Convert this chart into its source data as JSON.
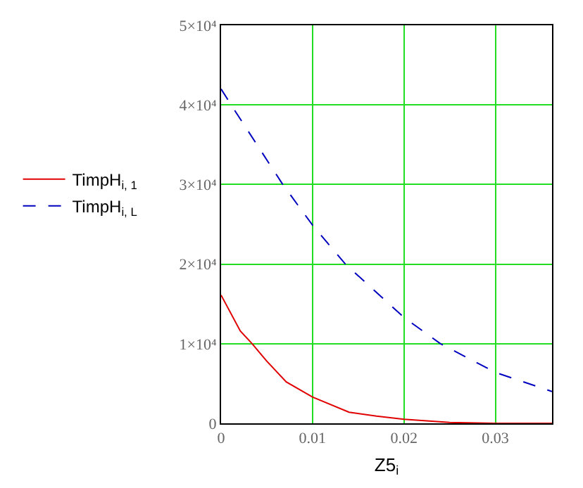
{
  "chart_data": {
    "type": "line",
    "xlabel": "Z5$_{i}$",
    "series": [
      {
        "name": "TimpH$_{i, 1}$",
        "color": "#e00000",
        "line_style": "solid",
        "x": [
          0,
          0.0021,
          0.0034,
          0.005,
          0.00713,
          0.01,
          0.014,
          0.017,
          0.02,
          0.025,
          0.03,
          0.0362
        ],
        "values": [
          16100,
          11600,
          10000,
          7800,
          5200,
          3300,
          1400,
          900,
          500,
          100,
          0,
          0
        ]
      },
      {
        "name": "TimpH$_{i, L}$",
        "color": "#0000c0",
        "line_style": "dashed",
        "x": [
          0,
          0.0011,
          0.00675,
          0.01,
          0.0136,
          0.02,
          0.024,
          0.03,
          0.0362
        ],
        "values": [
          42000,
          40000,
          30000,
          24900,
          20000,
          13300,
          10000,
          6400,
          4000
        ]
      }
    ],
    "xlim": [
      0,
      0.0362
    ],
    "xticks": [
      0,
      0.01,
      0.02,
      0.03
    ],
    "ylim": [
      0,
      50000
    ],
    "yticks": [
      0,
      {
        "value": 10000,
        "label": "1×10⁴"
      },
      {
        "value": 20000,
        "label": "2×10⁴"
      },
      {
        "value": 30000,
        "label": "3×10⁴"
      },
      {
        "value": 40000,
        "label": "4×10⁴"
      },
      {
        "value": 50000,
        "label": "5×10⁴"
      }
    ],
    "grid": true,
    "legend": "left",
    "marker": "none"
  }
}
